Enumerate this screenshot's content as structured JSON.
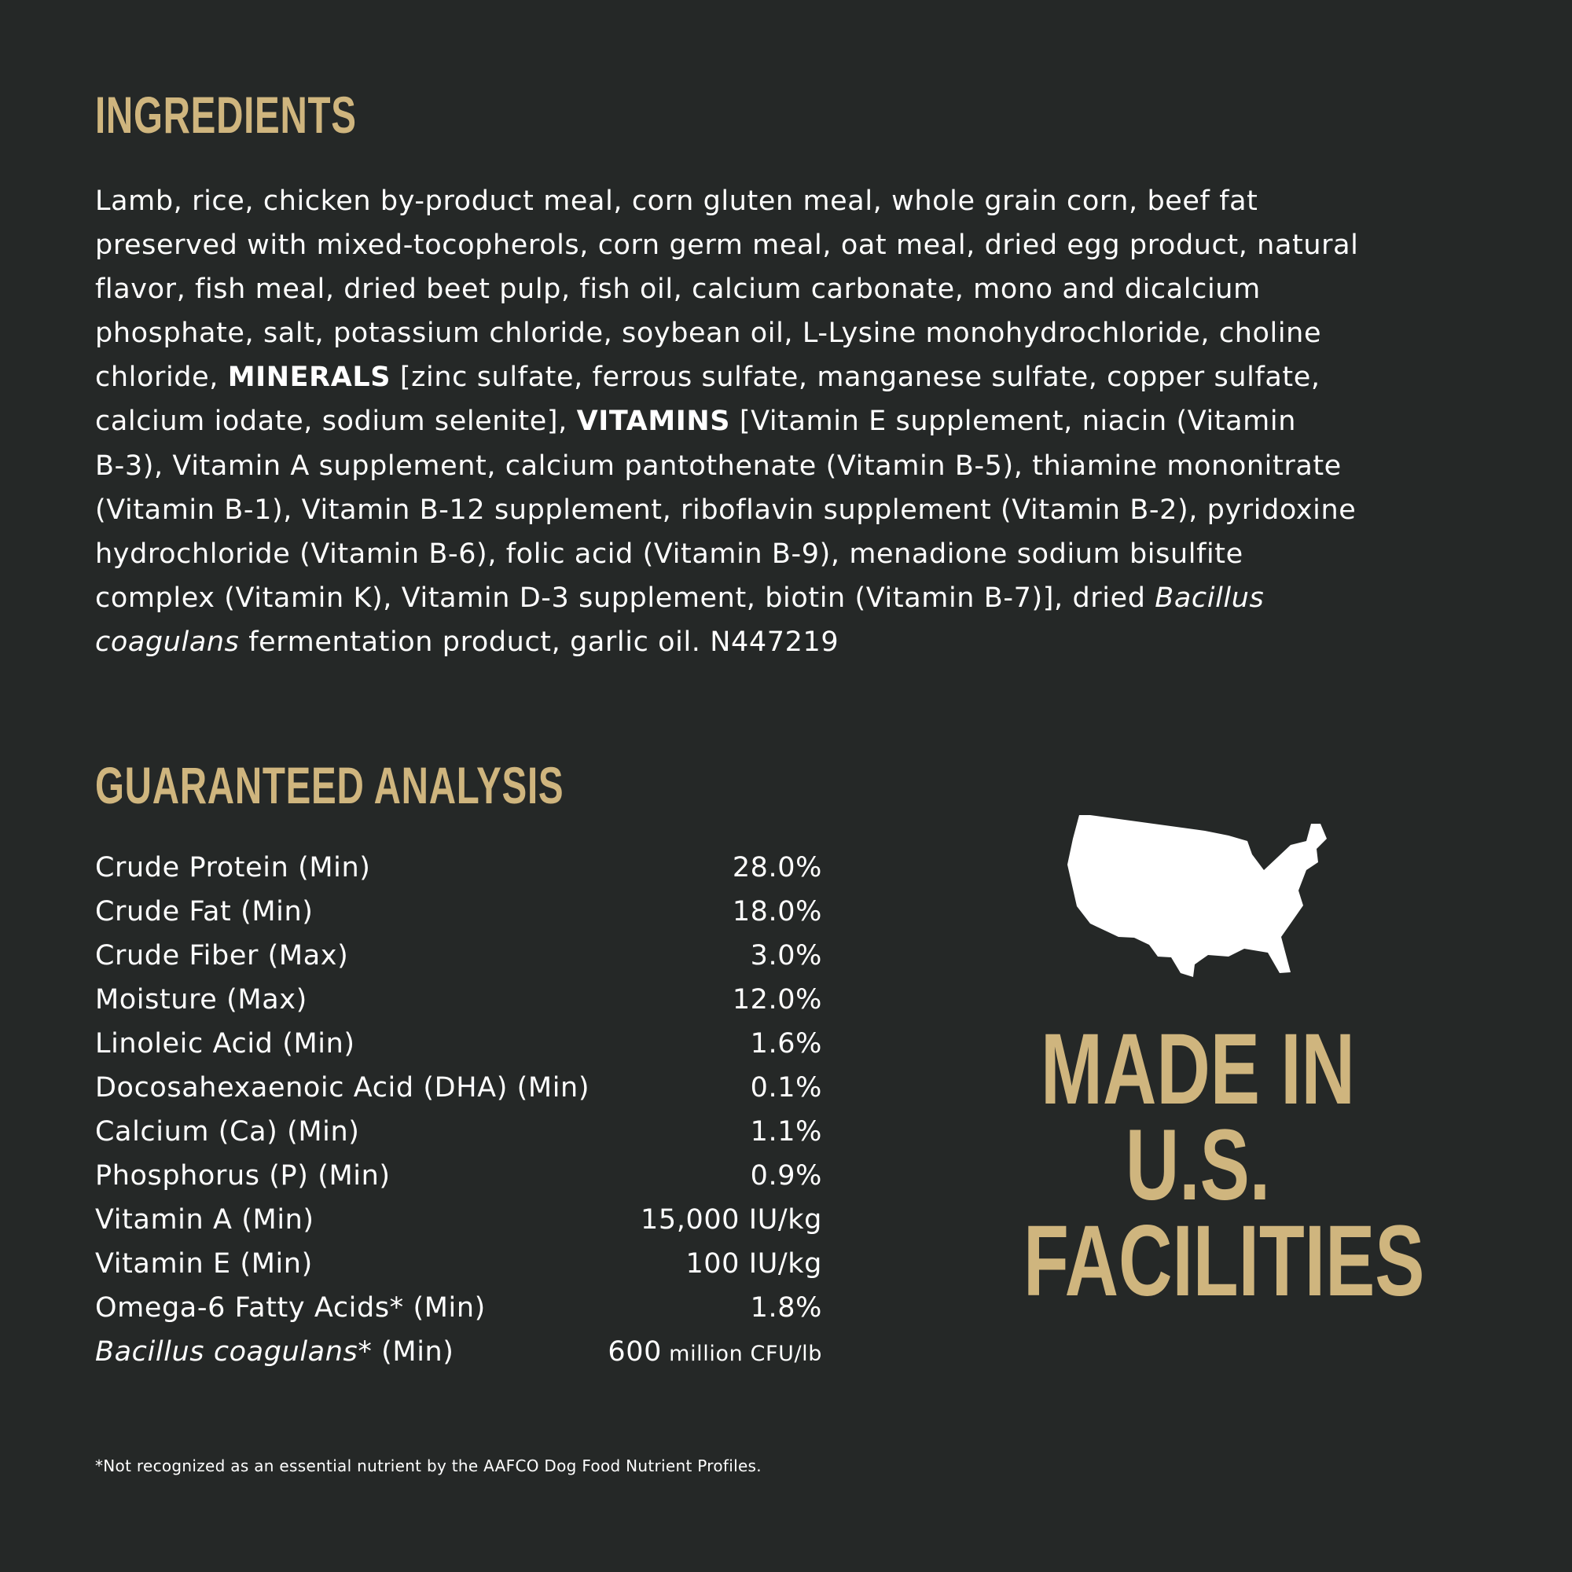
{
  "colors": {
    "background": "#252827",
    "accent": "#cfb57e",
    "text": "#ffffff"
  },
  "ingredients": {
    "heading": "INGREDIENTS",
    "lines": [
      [
        {
          "t": "Lamb, rice, chicken by-product meal, corn gluten meal, whole grain corn, beef fat"
        }
      ],
      [
        {
          "t": "preserved with mixed-tocopherols, corn germ meal, oat meal, dried egg product, natural"
        }
      ],
      [
        {
          "t": "flavor, fish meal, dried beet pulp, fish oil, calcium carbonate, mono and dicalcium"
        }
      ],
      [
        {
          "t": "phosphate, salt, potassium chloride, soybean oil, L-Lysine monohydrochloride, choline"
        }
      ],
      [
        {
          "t": "chloride, "
        },
        {
          "t": "MINERALS",
          "b": true
        },
        {
          "t": " [zinc sulfate, ferrous sulfate, manganese sulfate, copper sulfate,"
        }
      ],
      [
        {
          "t": "calcium iodate, sodium selenite], "
        },
        {
          "t": "VITAMINS",
          "b": true
        },
        {
          "t": " [Vitamin E supplement, niacin (Vitamin"
        }
      ],
      [
        {
          "t": "B-3), Vitamin A supplement, calcium pantothenate (Vitamin B-5), thiamine mononitrate"
        }
      ],
      [
        {
          "t": "(Vitamin B-1), Vitamin B-12 supplement, riboflavin supplement (Vitamin B-2), pyridoxine"
        }
      ],
      [
        {
          "t": "hydrochloride (Vitamin B-6), folic acid (Vitamin B-9), menadione sodium bisulfite"
        }
      ],
      [
        {
          "t": "complex (Vitamin K), Vitamin D-3 supplement, biotin (Vitamin B-7)], dried "
        },
        {
          "t": "Bacillus",
          "i": true
        }
      ],
      [
        {
          "t": "coagulans",
          "i": true
        },
        {
          "t": " fermentation product, garlic oil. N447219"
        }
      ]
    ]
  },
  "analysis": {
    "heading": "GUARANTEED ANALYSIS",
    "rows": [
      {
        "label": "Crude Protein (Min)",
        "value": "28.0%"
      },
      {
        "label": "Crude Fat (Min)",
        "value": "18.0%"
      },
      {
        "label": "Crude Fiber (Max)",
        "value": "3.0%"
      },
      {
        "label": "Moisture (Max)",
        "value": "12.0%"
      },
      {
        "label": "Linoleic Acid (Min)",
        "value": "1.6%"
      },
      {
        "label": "Docosahexaenoic Acid (DHA) (Min)",
        "value": "0.1%"
      },
      {
        "label": "Calcium (Ca) (Min)",
        "value": "1.1%"
      },
      {
        "label": "Phosphorus (P) (Min)",
        "value": "0.9%"
      },
      {
        "label": "Vitamin A (Min)",
        "value": "15,000 IU/kg"
      },
      {
        "label": "Vitamin E (Min)",
        "value": "100 IU/kg"
      },
      {
        "label": "Omega-6 Fatty Acids* (Min)",
        "value": "1.8%"
      }
    ],
    "bacillus": {
      "label_italic": "Bacillus coagulans",
      "label_rest": "* (Min)",
      "value": "600",
      "unit": " million CFU/lb"
    },
    "footnote": "*Not recognized as an essential nutrient by the AAFCO Dog Food Nutrient Profiles."
  },
  "badge": {
    "icon": "usa-map-icon",
    "lines": [
      "MADE IN",
      "U.S.",
      "FACILITIES"
    ]
  }
}
